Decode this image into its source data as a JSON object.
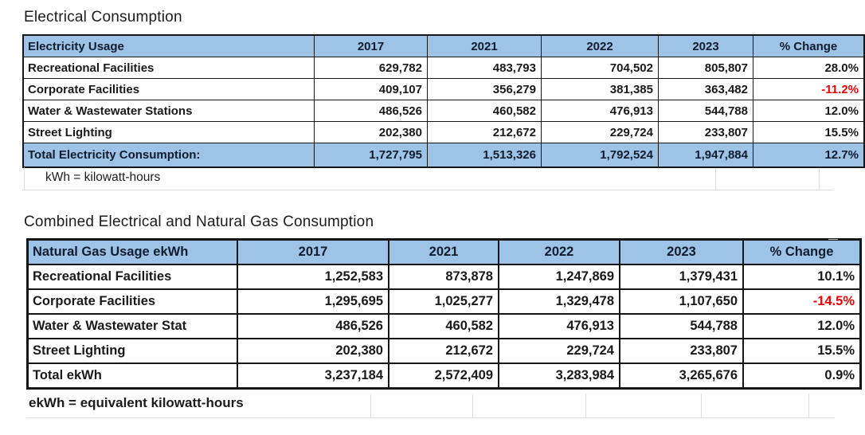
{
  "colors": {
    "header_fill": "#9dc3e6",
    "border": "#161616",
    "negative_text": "#f40000",
    "gridline_gray": "#d9d9d9"
  },
  "sections": [
    {
      "title": "Electrical Consumption",
      "footnote": "kWh = kilowatt-hours",
      "columns": [
        "Electricity Usage",
        "2017",
        "2021",
        "2022",
        "2023",
        "% Change"
      ],
      "rows": [
        {
          "cells": [
            "Recreational Facilities",
            "629,782",
            "483,793",
            "704,502",
            "805,807",
            "28.0%"
          ],
          "negative": false,
          "total": false,
          "highlight": false
        },
        {
          "cells": [
            "Corporate Facilities",
            "409,107",
            "356,279",
            "381,385",
            "363,482",
            "-11.2%"
          ],
          "negative": true,
          "total": false,
          "highlight": false
        },
        {
          "cells": [
            "Water & Wastewater Stations",
            "486,526",
            "460,582",
            "476,913",
            "544,788",
            "12.0%"
          ],
          "negative": false,
          "total": false,
          "highlight": false
        },
        {
          "cells": [
            "Street Lighting",
            "202,380",
            "212,672",
            "229,724",
            "233,807",
            "15.5%"
          ],
          "negative": false,
          "total": false,
          "highlight": false
        },
        {
          "cells": [
            "Total Electricity Consumption:",
            "1,727,795",
            "1,513,326",
            "1,792,524",
            "1,947,884",
            "12.7%"
          ],
          "negative": false,
          "total": true,
          "highlight": true
        }
      ]
    },
    {
      "title": "Combined Electrical and Natural Gas Consumption",
      "footnote": "ekWh = equivalent kilowatt-hours",
      "columns": [
        "Natural Gas Usage ekWh",
        "2017",
        "2021",
        "2022",
        "2023",
        "% Change"
      ],
      "rows": [
        {
          "cells": [
            "Recreational Facilities",
            "1,252,583",
            "873,878",
            "1,247,869",
            "1,379,431",
            "10.1%"
          ],
          "negative": false,
          "total": false,
          "highlight": false
        },
        {
          "cells": [
            "Corporate Facilities",
            "1,295,695",
            "1,025,277",
            "1,329,478",
            "1,107,650",
            "-14.5%"
          ],
          "negative": true,
          "total": false,
          "highlight": false
        },
        {
          "cells": [
            "Water & Wastewater Stat",
            "486,526",
            "460,582",
            "476,913",
            "544,788",
            "12.0%"
          ],
          "negative": false,
          "total": false,
          "highlight": false
        },
        {
          "cells": [
            "Street Lighting",
            "202,380",
            "212,672",
            "229,724",
            "233,807",
            "15.5%"
          ],
          "negative": false,
          "total": false,
          "highlight": false
        },
        {
          "cells": [
            "Total ekWh",
            "3,237,184",
            "2,572,409",
            "3,283,984",
            "3,265,676",
            "0.9%"
          ],
          "negative": false,
          "total": true,
          "highlight": false
        }
      ]
    }
  ]
}
